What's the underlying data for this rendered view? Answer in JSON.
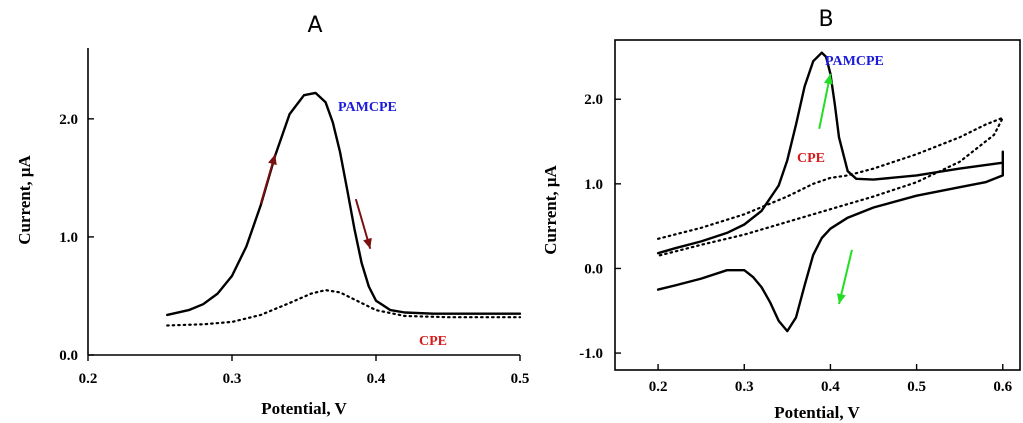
{
  "chart_data": [
    {
      "panel": "A",
      "type": "line",
      "title": "A",
      "xlabel": "Potential, V",
      "ylabel": "Current, μA",
      "xlim": [
        0.2,
        0.5
      ],
      "ylim": [
        0.0,
        2.6
      ],
      "xticks": [
        0.2,
        0.3,
        0.4,
        0.5
      ],
      "xtick_labels": [
        "0.2",
        "0.3",
        "0.4",
        "0.5"
      ],
      "yticks": [
        0.0,
        1.0,
        2.0
      ],
      "ytick_labels": [
        "0.0",
        "1.0",
        "2.0"
      ],
      "grid": false,
      "series": [
        {
          "name": "PAMCPE",
          "style": "solid",
          "color": "#000000",
          "label_color": "#1a1adb",
          "x": [
            0.255,
            0.27,
            0.28,
            0.29,
            0.3,
            0.31,
            0.32,
            0.33,
            0.34,
            0.35,
            0.358,
            0.365,
            0.37,
            0.375,
            0.38,
            0.385,
            0.39,
            0.395,
            0.4,
            0.41,
            0.42,
            0.44,
            0.46,
            0.48,
            0.5
          ],
          "y": [
            0.34,
            0.38,
            0.43,
            0.52,
            0.67,
            0.92,
            1.27,
            1.69,
            2.04,
            2.2,
            2.22,
            2.14,
            1.97,
            1.72,
            1.4,
            1.07,
            0.78,
            0.58,
            0.46,
            0.38,
            0.36,
            0.35,
            0.35,
            0.35,
            0.35
          ]
        },
        {
          "name": "CPE",
          "style": "dotted",
          "color": "#000000",
          "label_color": "#d61c1c",
          "x": [
            0.255,
            0.28,
            0.3,
            0.32,
            0.34,
            0.355,
            0.365,
            0.375,
            0.385,
            0.4,
            0.42,
            0.45,
            0.48,
            0.5
          ],
          "y": [
            0.25,
            0.26,
            0.28,
            0.34,
            0.44,
            0.52,
            0.55,
            0.53,
            0.47,
            0.38,
            0.33,
            0.32,
            0.32,
            0.32
          ]
        }
      ],
      "arrows": [
        {
          "x1": 0.32,
          "y1": 1.28,
          "x2": 0.33,
          "y2": 1.7,
          "color": "#7a1010"
        },
        {
          "x1": 0.386,
          "y1": 1.32,
          "x2": 0.396,
          "y2": 0.9,
          "color": "#7a1010"
        }
      ]
    },
    {
      "panel": "B",
      "type": "line",
      "title": "B",
      "xlabel": "Potential, V",
      "ylabel": "Current, μA",
      "xlim": [
        0.15,
        0.62
      ],
      "ylim": [
        -1.2,
        2.7
      ],
      "xticks": [
        0.2,
        0.3,
        0.4,
        0.5,
        0.6
      ],
      "xtick_labels": [
        "0.2",
        "0.3",
        "0.4",
        "0.5",
        "0.6"
      ],
      "yticks": [
        -1.0,
        0.0,
        1.0,
        2.0
      ],
      "ytick_labels": [
        "-1.0",
        "0.0",
        "1.0",
        "2.0"
      ],
      "grid": false,
      "series": [
        {
          "name": "PAMCPE",
          "style": "solid",
          "color": "#000000",
          "label_color": "#1a1adb",
          "x": [
            0.2,
            0.22,
            0.25,
            0.28,
            0.3,
            0.32,
            0.34,
            0.35,
            0.36,
            0.37,
            0.38,
            0.39,
            0.395,
            0.4,
            0.405,
            0.41,
            0.42,
            0.43,
            0.45,
            0.5,
            0.55,
            0.6,
            0.6,
            0.6,
            0.58,
            0.55,
            0.5,
            0.45,
            0.42,
            0.4,
            0.39,
            0.38,
            0.37,
            0.36,
            0.35,
            0.34,
            0.33,
            0.32,
            0.31,
            0.3,
            0.28,
            0.25,
            0.22,
            0.2
          ],
          "y": [
            0.18,
            0.24,
            0.32,
            0.42,
            0.52,
            0.68,
            0.98,
            1.28,
            1.7,
            2.15,
            2.45,
            2.55,
            2.5,
            2.3,
            1.95,
            1.55,
            1.15,
            1.06,
            1.05,
            1.1,
            1.18,
            1.25,
            1.38,
            1.1,
            1.02,
            0.96,
            0.86,
            0.72,
            0.6,
            0.47,
            0.36,
            0.16,
            -0.2,
            -0.58,
            -0.74,
            -0.62,
            -0.4,
            -0.22,
            -0.1,
            -0.02,
            -0.02,
            -0.12,
            -0.2,
            -0.25
          ]
        },
        {
          "name": "CPE",
          "style": "dotted",
          "color": "#000000",
          "label_color": "#d61c1c",
          "x": [
            0.2,
            0.25,
            0.3,
            0.35,
            0.38,
            0.4,
            0.42,
            0.45,
            0.5,
            0.55,
            0.58,
            0.6,
            0.59,
            0.55,
            0.5,
            0.45,
            0.4,
            0.35,
            0.3,
            0.25,
            0.2
          ],
          "y": [
            0.35,
            0.48,
            0.64,
            0.85,
            1.0,
            1.07,
            1.1,
            1.18,
            1.35,
            1.55,
            1.7,
            1.78,
            1.58,
            1.26,
            1.02,
            0.85,
            0.7,
            0.55,
            0.4,
            0.28,
            0.15
          ]
        }
      ],
      "arrows": [
        {
          "x1": 0.387,
          "y1": 1.65,
          "x2": 0.4,
          "y2": 2.3,
          "color": "#22dd22"
        },
        {
          "x1": 0.425,
          "y1": 0.22,
          "x2": 0.41,
          "y2": -0.42,
          "color": "#22dd22"
        }
      ]
    }
  ]
}
